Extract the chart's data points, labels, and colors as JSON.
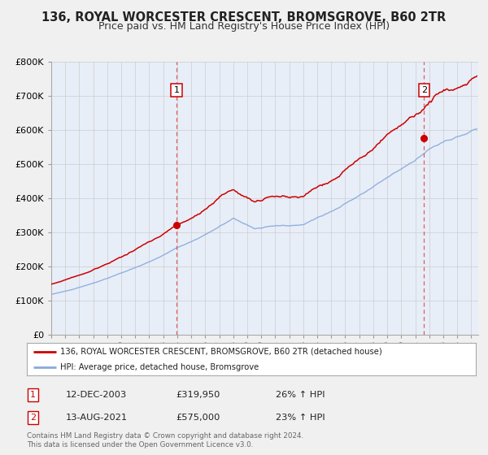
{
  "title": "136, ROYAL WORCESTER CRESCENT, BROMSGROVE, B60 2TR",
  "subtitle": "Price paid vs. HM Land Registry's House Price Index (HPI)",
  "legend_label1": "136, ROYAL WORCESTER CRESCENT, BROMSGROVE, B60 2TR (detached house)",
  "legend_label2": "HPI: Average price, detached house, Bromsgrove",
  "sale1_label": "1",
  "sale1_date": "12-DEC-2003",
  "sale1_price": "£319,950",
  "sale1_hpi": "26% ↑ HPI",
  "sale2_label": "2",
  "sale2_date": "13-AUG-2021",
  "sale2_price": "£575,000",
  "sale2_hpi": "23% ↑ HPI",
  "footer1": "Contains HM Land Registry data © Crown copyright and database right 2024.",
  "footer2": "This data is licensed under the Open Government Licence v3.0.",
  "color_red": "#cc0000",
  "color_blue": "#88aadd",
  "color_dashed": "#dd4444",
  "background_color": "#f0f0f0",
  "plot_bg": "#e8eef8",
  "ylim": [
    0,
    800000
  ],
  "xlim_start": 1995.0,
  "xlim_end": 2025.5,
  "sale1_x": 2003.95,
  "sale1_y": 319950,
  "sale2_x": 2021.62,
  "sale2_y": 575000,
  "title_fontsize": 10.5,
  "subtitle_fontsize": 9,
  "axis_fontsize": 8,
  "yticks": [
    0,
    100000,
    200000,
    300000,
    400000,
    500000,
    600000,
    700000,
    800000
  ],
  "ytick_labels": [
    "£0",
    "£100K",
    "£200K",
    "£300K",
    "£400K",
    "£500K",
    "£600K",
    "£700K",
    "£800K"
  ]
}
